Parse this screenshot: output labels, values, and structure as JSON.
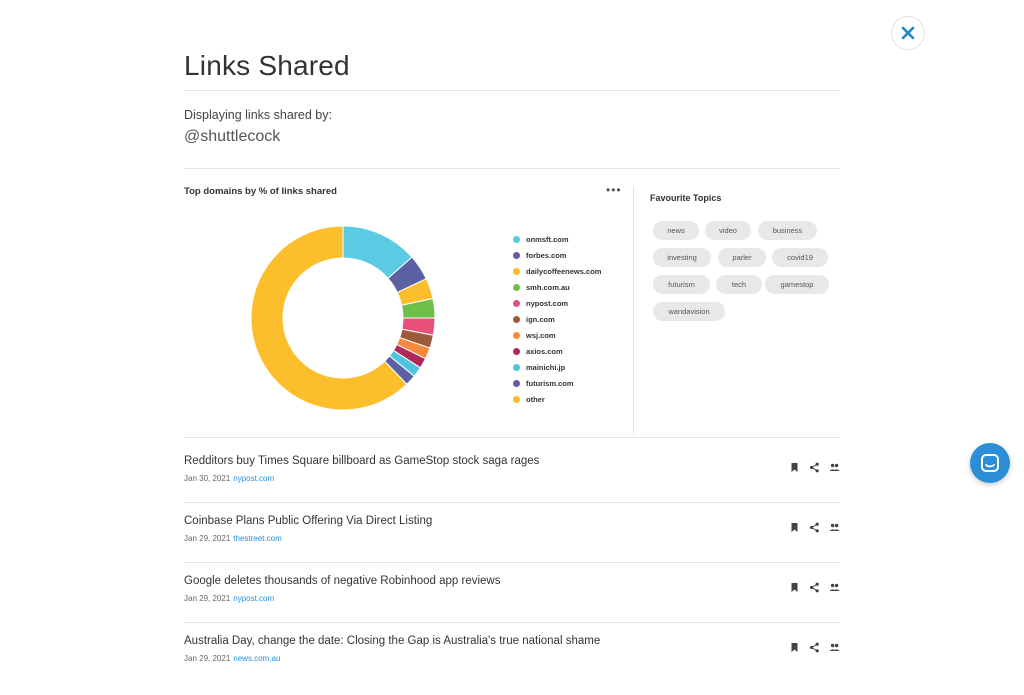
{
  "modal": {
    "title": "Links Shared",
    "subtitle": "Displaying links shared by:",
    "handle": "@shuttlecock",
    "close_icon": "close-icon"
  },
  "domains_card": {
    "title": "Top domains by % of links shared",
    "more_label": "•••"
  },
  "chart_data": {
    "type": "pie",
    "title": "Top domains by % of links shared",
    "donut": true,
    "legend_position": "right",
    "categories": [
      "onmsft.com",
      "forbes.com",
      "dailycoffeenews.com",
      "smh.com.au",
      "nypost.com",
      "ign.com",
      "wsj.com",
      "axios.com",
      "mainichi.jp",
      "futurism.com",
      "other"
    ],
    "values": [
      13.5,
      4.5,
      3.6,
      3.4,
      3.0,
      2.3,
      2.0,
      1.8,
      1.8,
      1.9,
      62.2
    ],
    "colors": [
      "#5bcbe3",
      "#5b5fa3",
      "#fcbf2b",
      "#6cc04a",
      "#e8507a",
      "#9c5a38",
      "#f58a3f",
      "#b0285a",
      "#4fc3e0",
      "#5b5fa3",
      "#fcbf2b"
    ]
  },
  "topics": {
    "title": "Favourite Topics",
    "items": [
      "news",
      "video",
      "business",
      "investing",
      "parler",
      "covid19",
      "futurism",
      "tech",
      "gamestop",
      "wandavision"
    ]
  },
  "articles": [
    {
      "title": "Redditors buy Times Square billboard as GameStop stock saga rages",
      "date": "Jan 30, 2021",
      "source": "nypost.com"
    },
    {
      "title": "Coinbase Plans Public Offering Via Direct Listing",
      "date": "Jan 29, 2021",
      "source": "thestreet.com"
    },
    {
      "title": "Google deletes thousands of negative Robinhood app reviews",
      "date": "Jan 29, 2021",
      "source": "nypost.com"
    },
    {
      "title": "Australia Day, change the date: Closing the Gap is Australia's true national shame",
      "date": "Jan 29, 2021",
      "source": "news.com.au"
    }
  ],
  "article_actions": [
    "bookmark-icon",
    "share-icon",
    "people-icon"
  ],
  "colors": {
    "accent": "#2c8ed6",
    "link": "#2a8fd8",
    "chip_bg": "#e8e8e8"
  }
}
